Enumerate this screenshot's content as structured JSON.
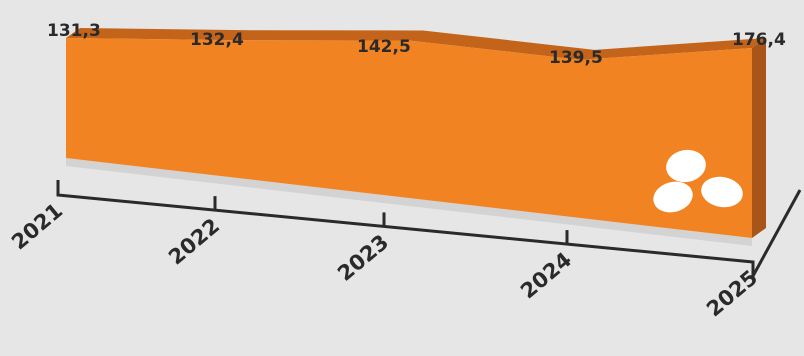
{
  "chart_data": {
    "type": "area",
    "categories": [
      "2021",
      "2022",
      "2023",
      "2024",
      "2025"
    ],
    "values": [
      131.3,
      132.4,
      142.5,
      139.5,
      176.4
    ],
    "value_labels": [
      "131,3",
      "132,4",
      "142,5",
      "139,5",
      "176,4"
    ],
    "title": "",
    "xlabel": "",
    "ylabel": "",
    "grid": false,
    "legend": "none"
  },
  "colors": {
    "background": "#e6e6e6",
    "area_front": "#f28322",
    "area_top": "#c4641a",
    "area_side": "#a9551a",
    "axis": "#2a2a2a",
    "eggs": "#ffffff"
  },
  "icons": [
    "eggs-icon"
  ]
}
